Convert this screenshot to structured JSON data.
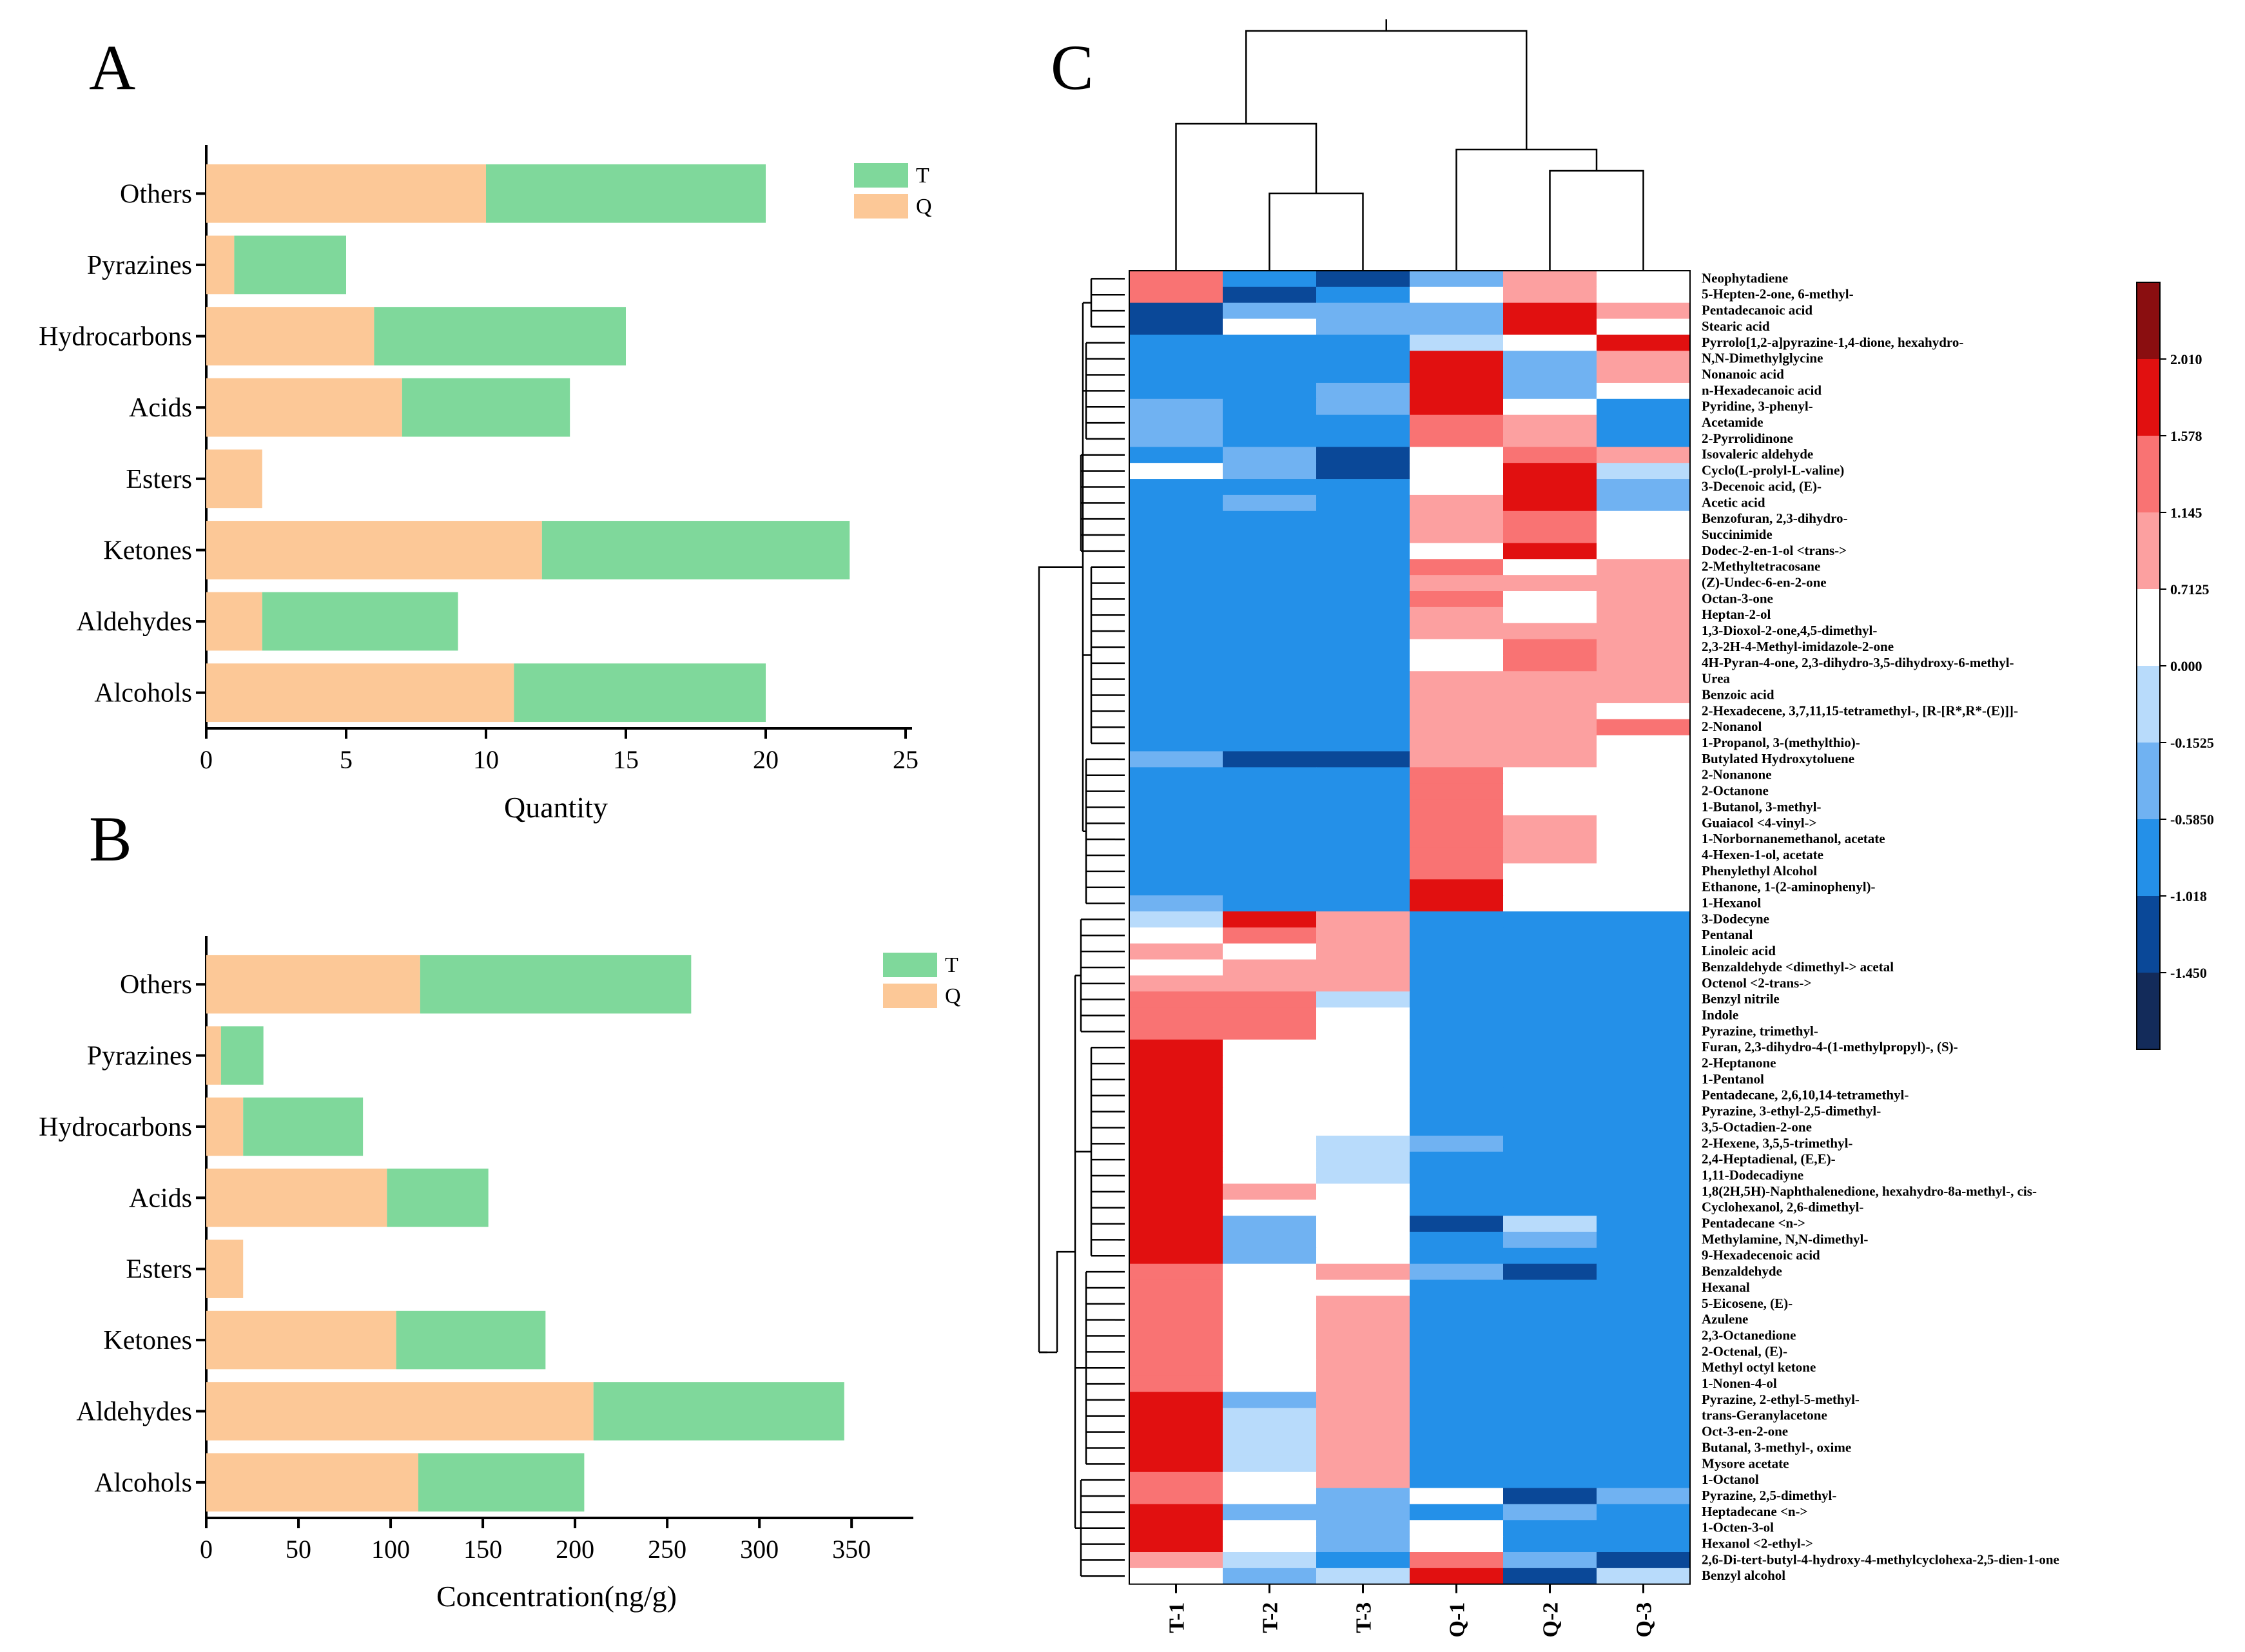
{
  "figure": {
    "panel_a_label": "A",
    "panel_b_label": "B",
    "panel_c_label": "C"
  },
  "colors": {
    "Q": "#fcc897",
    "T": "#7fd89b",
    "scale": [
      "#132b5a",
      "#0a4898",
      "#2490e8",
      "#70b2f2",
      "#b8dbfb",
      "#ffffff",
      "#fca0a0",
      "#f97373",
      "#e11010",
      "#8a0e10"
    ]
  },
  "chart_data": [
    {
      "type": "bar",
      "orientation": "horizontal",
      "stacked": true,
      "panel": "A",
      "categories": [
        "Others",
        "Pyrazines",
        "Hydrocarbons",
        "Acids",
        "Esters",
        "Ketones",
        "Aldehydes",
        "Alcohols"
      ],
      "series": [
        {
          "name": "Q",
          "values": [
            10,
            1,
            6,
            7,
            2,
            12,
            2,
            11
          ]
        },
        {
          "name": "T",
          "values": [
            10,
            4,
            9,
            6,
            0,
            11,
            7,
            9
          ]
        }
      ],
      "legend": [
        "T",
        "Q"
      ],
      "legend_position": "top-right",
      "xlabel": "Quantity",
      "xlim": [
        0,
        25
      ],
      "xticks": [
        0,
        5,
        10,
        15,
        20,
        25
      ]
    },
    {
      "type": "bar",
      "orientation": "horizontal",
      "stacked": true,
      "panel": "B",
      "categories": [
        "Others",
        "Pyrazines",
        "Hydrocarbons",
        "Acids",
        "Esters",
        "Ketones",
        "Aldehydes",
        "Alcohols"
      ],
      "series": [
        {
          "name": "Q",
          "values": [
            116,
            8,
            20,
            98,
            20,
            103,
            210,
            115
          ]
        },
        {
          "name": "T",
          "values": [
            147,
            23,
            65,
            55,
            0,
            81,
            136,
            90
          ]
        }
      ],
      "legend": [
        "T",
        "Q"
      ],
      "legend_position": "top-right",
      "xlabel": "Concentration(ng/g)",
      "xlim": [
        0,
        380
      ],
      "xticks": [
        0,
        50,
        100,
        150,
        200,
        250,
        300,
        350
      ]
    },
    {
      "type": "heatmap",
      "panel": "C",
      "columns": [
        "T-1",
        "T-2",
        "T-3",
        "Q-1",
        "Q-2",
        "Q-3"
      ],
      "colorbar_ticks": [
        "2.010",
        "1.578",
        "1.145",
        "0.7125",
        "0.000",
        "-0.1525",
        "-0.5850",
        "-1.018",
        "-1.450"
      ],
      "level_key": "0=darkest blue ... 5=white ... 9=darkest red",
      "rows": [
        {
          "name": "Neophytadiene",
          "levels": [
            7,
            2,
            1,
            3,
            6,
            5
          ]
        },
        {
          "name": "5-Hepten-2-one, 6-methyl-",
          "levels": [
            7,
            1,
            2,
            5,
            6,
            5
          ]
        },
        {
          "name": "Pentadecanoic acid",
          "levels": [
            1,
            3,
            3,
            3,
            8,
            6
          ]
        },
        {
          "name": "Stearic acid",
          "levels": [
            1,
            5,
            3,
            3,
            8,
            5
          ]
        },
        {
          "name": "Pyrrolo[1,2-a]pyrazine-1,4-dione, hexahydro-",
          "levels": [
            2,
            2,
            2,
            4,
            5,
            8
          ]
        },
        {
          "name": "N,N-Dimethylglycine",
          "levels": [
            2,
            2,
            2,
            8,
            3,
            6
          ]
        },
        {
          "name": "Nonanoic acid",
          "levels": [
            2,
            2,
            2,
            8,
            3,
            6
          ]
        },
        {
          "name": "n-Hexadecanoic acid",
          "levels": [
            2,
            2,
            3,
            8,
            3,
            5
          ]
        },
        {
          "name": "Pyridine, 3-phenyl-",
          "levels": [
            3,
            2,
            3,
            8,
            5,
            2
          ]
        },
        {
          "name": "Acetamide",
          "levels": [
            3,
            2,
            2,
            7,
            6,
            2
          ]
        },
        {
          "name": "2-Pyrrolidinone",
          "levels": [
            3,
            2,
            2,
            7,
            6,
            2
          ]
        },
        {
          "name": "Isovaleric aldehyde",
          "levels": [
            2,
            3,
            1,
            5,
            7,
            6
          ]
        },
        {
          "name": "Cyclo(L-prolyl-L-valine)",
          "levels": [
            5,
            3,
            1,
            5,
            8,
            4
          ]
        },
        {
          "name": "3-Decenoic acid, (E)-",
          "levels": [
            2,
            2,
            2,
            5,
            8,
            3
          ]
        },
        {
          "name": "Acetic acid",
          "levels": [
            2,
            3,
            2,
            6,
            8,
            3
          ]
        },
        {
          "name": "Benzofuran, 2,3-dihydro-",
          "levels": [
            2,
            2,
            2,
            6,
            7,
            5
          ]
        },
        {
          "name": "Succinimide",
          "levels": [
            2,
            2,
            2,
            6,
            7,
            5
          ]
        },
        {
          "name": "Dodec-2-en-1-ol <trans->",
          "levels": [
            2,
            2,
            2,
            5,
            8,
            5
          ]
        },
        {
          "name": "2-Methyltetracosane",
          "levels": [
            2,
            2,
            2,
            7,
            5,
            6
          ]
        },
        {
          "name": "(Z)-Undec-6-en-2-one",
          "levels": [
            2,
            2,
            2,
            6,
            6,
            6
          ]
        },
        {
          "name": "Octan-3-one",
          "levels": [
            2,
            2,
            2,
            7,
            5,
            6
          ]
        },
        {
          "name": "Heptan-2-ol",
          "levels": [
            2,
            2,
            2,
            6,
            5,
            6
          ]
        },
        {
          "name": "1,3-Dioxol-2-one,4,5-dimethyl-",
          "levels": [
            2,
            2,
            2,
            6,
            6,
            6
          ]
        },
        {
          "name": "2,3-2H-4-Methyl-imidazole-2-one",
          "levels": [
            2,
            2,
            2,
            5,
            7,
            6
          ]
        },
        {
          "name": "4H-Pyran-4-one, 2,3-dihydro-3,5-dihydroxy-6-methyl-",
          "levels": [
            2,
            2,
            2,
            5,
            7,
            6
          ]
        },
        {
          "name": "Urea",
          "levels": [
            2,
            2,
            2,
            6,
            6,
            6
          ]
        },
        {
          "name": "Benzoic acid",
          "levels": [
            2,
            2,
            2,
            6,
            6,
            6
          ]
        },
        {
          "name": "2-Hexadecene, 3,7,11,15-tetramethyl-, [R-[R*,R*-(E)]]-",
          "levels": [
            2,
            2,
            2,
            6,
            6,
            5
          ]
        },
        {
          "name": "2-Nonanol",
          "levels": [
            2,
            2,
            2,
            6,
            6,
            7
          ]
        },
        {
          "name": "1-Propanol, 3-(methylthio)-",
          "levels": [
            2,
            2,
            2,
            6,
            6,
            5
          ]
        },
        {
          "name": "Butylated Hydroxytoluene",
          "levels": [
            3,
            1,
            1,
            6,
            6,
            5
          ]
        },
        {
          "name": "2-Nonanone",
          "levels": [
            2,
            2,
            2,
            7,
            5,
            5
          ]
        },
        {
          "name": "2-Octanone",
          "levels": [
            2,
            2,
            2,
            7,
            5,
            5
          ]
        },
        {
          "name": "1-Butanol, 3-methyl-",
          "levels": [
            2,
            2,
            2,
            7,
            5,
            5
          ]
        },
        {
          "name": "Guaiacol <4-vinyl->",
          "levels": [
            2,
            2,
            2,
            7,
            6,
            5
          ]
        },
        {
          "name": "1-Norbornanemethanol, acetate",
          "levels": [
            2,
            2,
            2,
            7,
            6,
            5
          ]
        },
        {
          "name": "4-Hexen-1-ol, acetate",
          "levels": [
            2,
            2,
            2,
            7,
            6,
            5
          ]
        },
        {
          "name": "Phenylethyl Alcohol",
          "levels": [
            2,
            2,
            2,
            7,
            5,
            5
          ]
        },
        {
          "name": "Ethanone, 1-(2-aminophenyl)-",
          "levels": [
            2,
            2,
            2,
            8,
            5,
            5
          ]
        },
        {
          "name": "1-Hexanol",
          "levels": [
            3,
            2,
            2,
            8,
            5,
            5
          ]
        },
        {
          "name": "3-Dodecyne",
          "levels": [
            4,
            8,
            6,
            2,
            2,
            2
          ]
        },
        {
          "name": "Pentanal",
          "levels": [
            5,
            7,
            6,
            2,
            2,
            2
          ]
        },
        {
          "name": "Linoleic acid",
          "levels": [
            6,
            5,
            6,
            2,
            2,
            2
          ]
        },
        {
          "name": "Benzaldehyde <dimethyl-> acetal",
          "levels": [
            5,
            6,
            6,
            2,
            2,
            2
          ]
        },
        {
          "name": "Octenol <2-trans->",
          "levels": [
            6,
            6,
            6,
            2,
            2,
            2
          ]
        },
        {
          "name": "Benzyl nitrile",
          "levels": [
            7,
            7,
            4,
            2,
            2,
            2
          ]
        },
        {
          "name": "Indole",
          "levels": [
            7,
            7,
            5,
            2,
            2,
            2
          ]
        },
        {
          "name": "Pyrazine, trimethyl-",
          "levels": [
            7,
            7,
            5,
            2,
            2,
            2
          ]
        },
        {
          "name": "Furan, 2,3-dihydro-4-(1-methylpropyl)-, (S)-",
          "levels": [
            8,
            5,
            5,
            2,
            2,
            2
          ]
        },
        {
          "name": "2-Heptanone",
          "levels": [
            8,
            5,
            5,
            2,
            2,
            2
          ]
        },
        {
          "name": "1-Pentanol",
          "levels": [
            8,
            5,
            5,
            2,
            2,
            2
          ]
        },
        {
          "name": "Pentadecane, 2,6,10,14-tetramethyl-",
          "levels": [
            8,
            5,
            5,
            2,
            2,
            2
          ]
        },
        {
          "name": "Pyrazine, 3-ethyl-2,5-dimethyl-",
          "levels": [
            8,
            5,
            5,
            2,
            2,
            2
          ]
        },
        {
          "name": "3,5-Octadien-2-one",
          "levels": [
            8,
            5,
            5,
            2,
            2,
            2
          ]
        },
        {
          "name": "2-Hexene, 3,5,5-trimethyl-",
          "levels": [
            8,
            5,
            4,
            3,
            2,
            2
          ]
        },
        {
          "name": "2,4-Heptadienal, (E,E)-",
          "levels": [
            8,
            5,
            4,
            2,
            2,
            2
          ]
        },
        {
          "name": "1,11-Dodecadiyne",
          "levels": [
            8,
            5,
            4,
            2,
            2,
            2
          ]
        },
        {
          "name": "1,8(2H,5H)-Naphthalenedione, hexahydro-8a-methyl-, cis-",
          "levels": [
            8,
            6,
            5,
            2,
            2,
            2
          ]
        },
        {
          "name": "Cyclohexanol, 2,6-dimethyl-",
          "levels": [
            8,
            5,
            5,
            2,
            2,
            2
          ]
        },
        {
          "name": "Pentadecane <n->",
          "levels": [
            8,
            3,
            5,
            1,
            4,
            2
          ]
        },
        {
          "name": "Methylamine, N,N-dimethyl-",
          "levels": [
            8,
            3,
            5,
            2,
            3,
            2
          ]
        },
        {
          "name": "9-Hexadecenoic acid",
          "levels": [
            8,
            3,
            5,
            2,
            2,
            2
          ]
        },
        {
          "name": "Benzaldehyde",
          "levels": [
            7,
            5,
            6,
            3,
            1,
            2
          ]
        },
        {
          "name": "Hexanal",
          "levels": [
            7,
            5,
            5,
            2,
            2,
            2
          ]
        },
        {
          "name": "5-Eicosene, (E)-",
          "levels": [
            7,
            5,
            6,
            2,
            2,
            2
          ]
        },
        {
          "name": "Azulene",
          "levels": [
            7,
            5,
            6,
            2,
            2,
            2
          ]
        },
        {
          "name": "2,3-Octanedione",
          "levels": [
            7,
            5,
            6,
            2,
            2,
            2
          ]
        },
        {
          "name": "2-Octenal, (E)-",
          "levels": [
            7,
            5,
            6,
            2,
            2,
            2
          ]
        },
        {
          "name": "Methyl octyl ketone",
          "levels": [
            7,
            5,
            6,
            2,
            2,
            2
          ]
        },
        {
          "name": "1-Nonen-4-ol",
          "levels": [
            7,
            5,
            6,
            2,
            2,
            2
          ]
        },
        {
          "name": "Pyrazine, 2-ethyl-5-methyl-",
          "levels": [
            8,
            3,
            6,
            2,
            2,
            2
          ]
        },
        {
          "name": "trans-Geranylacetone",
          "levels": [
            8,
            4,
            6,
            2,
            2,
            2
          ]
        },
        {
          "name": "Oct-3-en-2-one",
          "levels": [
            8,
            4,
            6,
            2,
            2,
            2
          ]
        },
        {
          "name": "Butanal, 3-methyl-, oxime",
          "levels": [
            8,
            4,
            6,
            2,
            2,
            2
          ]
        },
        {
          "name": "Mysore acetate",
          "levels": [
            8,
            4,
            6,
            2,
            2,
            2
          ]
        },
        {
          "name": "1-Octanol",
          "levels": [
            7,
            5,
            6,
            2,
            2,
            2
          ]
        },
        {
          "name": "Pyrazine, 2,5-dimethyl-",
          "levels": [
            7,
            5,
            3,
            5,
            1,
            3
          ]
        },
        {
          "name": "Heptadecane <n->",
          "levels": [
            8,
            3,
            3,
            2,
            3,
            2
          ]
        },
        {
          "name": "1-Octen-3-ol",
          "levels": [
            8,
            5,
            3,
            5,
            2,
            2
          ]
        },
        {
          "name": "Hexanol <2-ethyl->",
          "levels": [
            8,
            5,
            3,
            5,
            2,
            2
          ]
        },
        {
          "name": "2,6-Di-tert-butyl-4-hydroxy-4-methylcyclohexa-2,5-dien-1-one",
          "levels": [
            6,
            4,
            2,
            7,
            3,
            1
          ]
        },
        {
          "name": "Benzyl alcohol",
          "levels": [
            5,
            3,
            4,
            8,
            1,
            4
          ]
        }
      ]
    }
  ]
}
